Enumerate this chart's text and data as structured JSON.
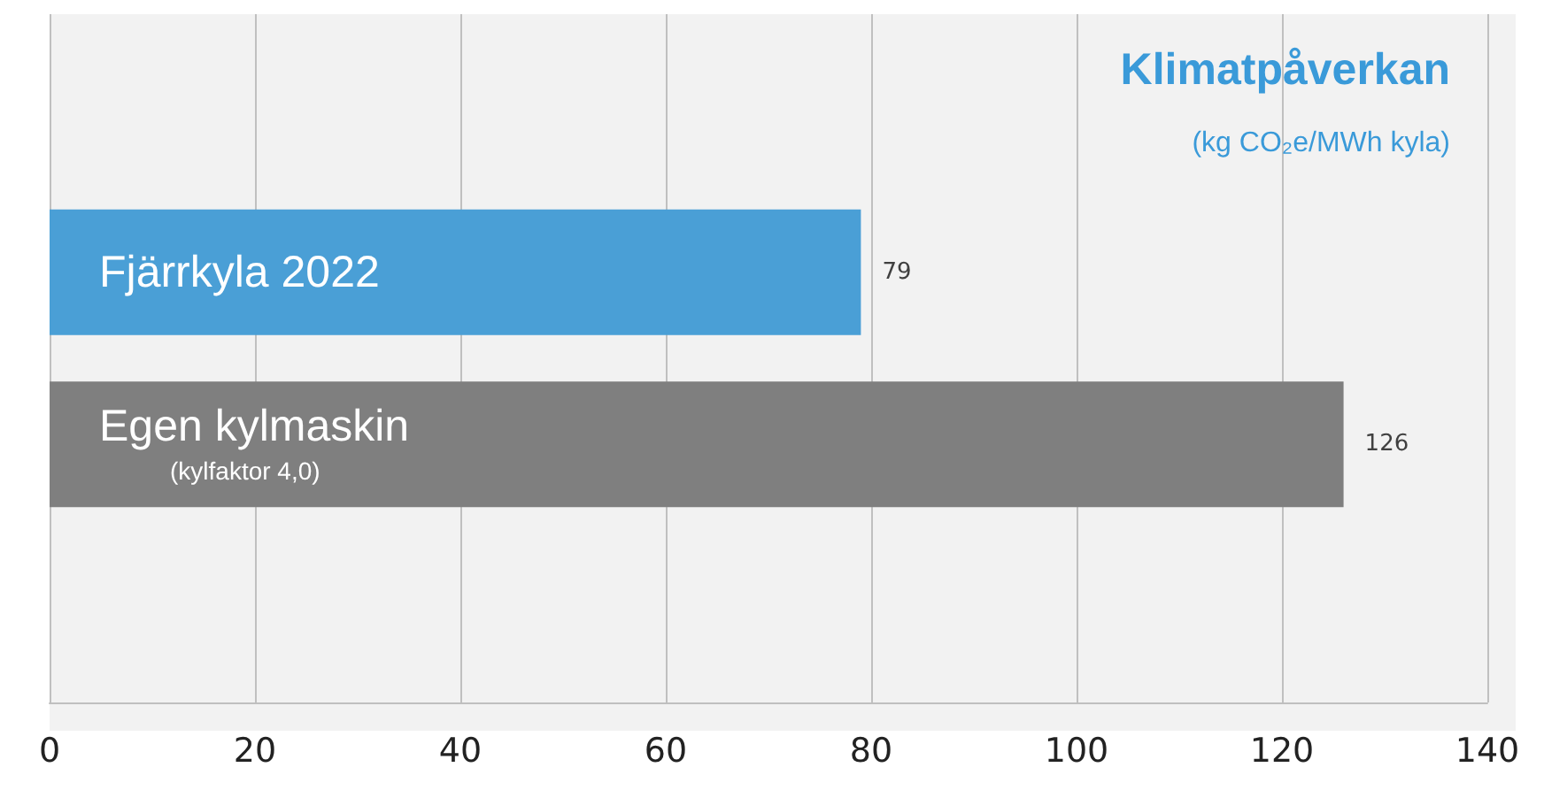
{
  "chart_data": {
    "type": "bar",
    "orientation": "horizontal",
    "title": "Klimatpåverkan",
    "subtitle": "(kg CO₂e/MWh kyla)",
    "categories": [
      "Fjärrkyla 2022",
      "Egen kylmaskin\n(kylfaktor 4,0)"
    ],
    "values": [
      79,
      126
    ],
    "colors": [
      "#4a9fd6",
      "#7f7f7f"
    ],
    "xlim": [
      0,
      140
    ],
    "xticks": [
      0,
      20,
      40,
      60,
      80,
      100,
      120,
      140
    ],
    "grid": "x",
    "data_labels": true
  }
}
